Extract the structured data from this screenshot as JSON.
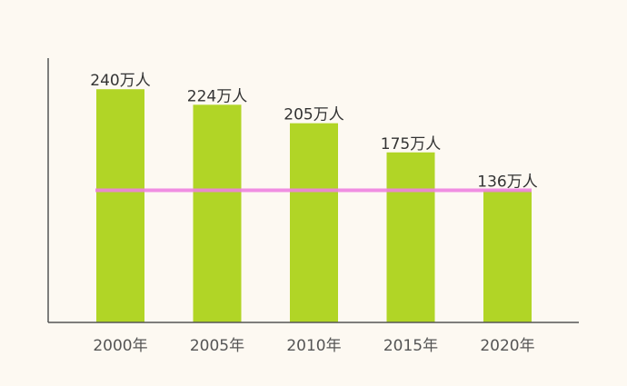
{
  "chart_data": {
    "type": "bar",
    "categories": [
      "2000年",
      "2005年",
      "2010年",
      "2015年",
      "2020年"
    ],
    "values": [
      240,
      224,
      205,
      175,
      136
    ],
    "value_labels": [
      "240万人",
      "224万人",
      "205万人",
      "175万人",
      "136万人"
    ],
    "unit": "万人",
    "title": "",
    "xlabel": "",
    "ylabel": "",
    "ylim": [
      0,
      272
    ],
    "reference_line": {
      "value": 136
    },
    "grid": false,
    "colors": {
      "bar": "#b1d526",
      "reference_line": "#ee82e0",
      "axis": "#555555",
      "background": "#fdf9f2"
    }
  }
}
